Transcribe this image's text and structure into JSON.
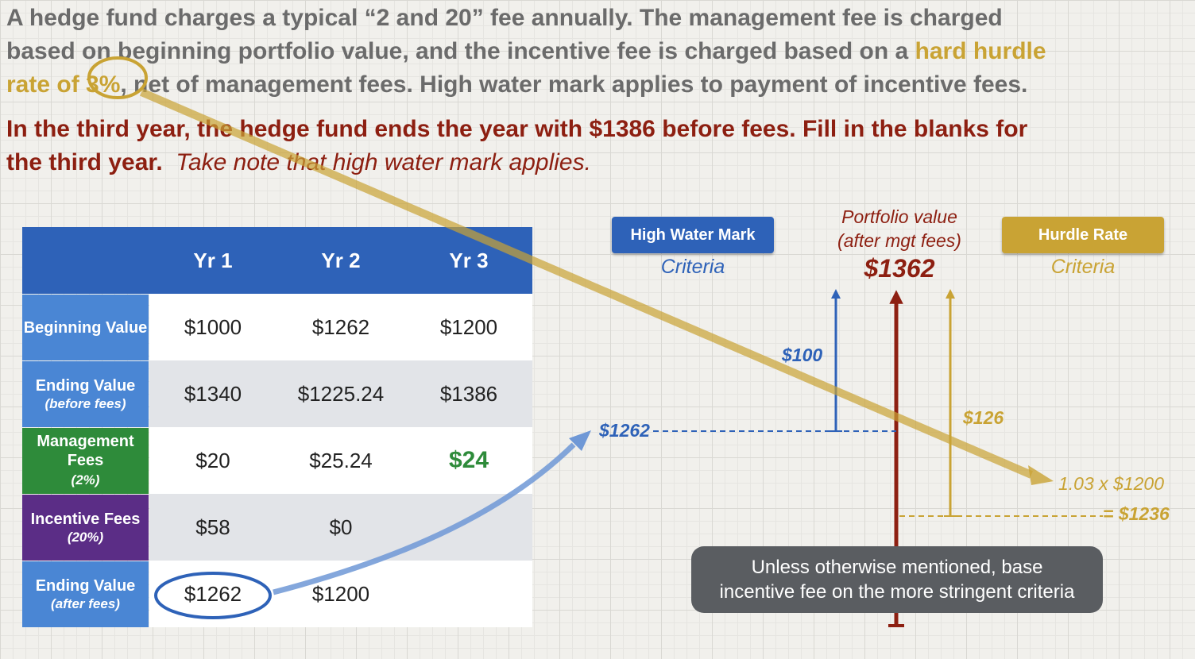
{
  "intro": {
    "part1": "A hedge fund charges a typical “2 and 20” fee annually.  The management fee is charged",
    "part2a": "based on beginning portfolio value, and the incentive fee is charged based on a ",
    "part2b": "hard hurdle",
    "part3a": "rate of 3%",
    "part3b": ", net of management fees.  High water mark applies to payment of incentive fees."
  },
  "question": {
    "line1": "In the third year, the hedge fund ends the year with $1386 before fees.  Fill in the blanks for",
    "line2": "the third year.",
    "note": "Take note that high water mark applies."
  },
  "table": {
    "headers": [
      "Yr 1",
      "Yr 2",
      "Yr 3"
    ],
    "rows": [
      {
        "label": "Beginning Value",
        "sub": "",
        "values": [
          "$1000",
          "$1262",
          "$1200"
        ]
      },
      {
        "label": "Ending Value",
        "sub": "(before fees)",
        "values": [
          "$1340",
          "$1225.24",
          "$1386"
        ]
      },
      {
        "label": "Management Fees",
        "sub": "(2%)",
        "values": [
          "$20",
          "$25.24",
          "$24"
        ]
      },
      {
        "label": "Incentive Fees",
        "sub": "(20%)",
        "values": [
          "$58",
          "$0",
          ""
        ]
      },
      {
        "label": "Ending Value",
        "sub": "(after fees)",
        "values": [
          "$1262",
          "$1200",
          ""
        ]
      }
    ]
  },
  "diagram": {
    "hwm_title": "High Water Mark",
    "hwm_sub": "Criteria",
    "portfolio_label_1": "Portfolio value",
    "portfolio_label_2": "(after mgt fees)",
    "portfolio_value": "$1362",
    "hurdle_title": "Hurdle Rate",
    "hurdle_sub": "Criteria",
    "hwm_gap": "$100",
    "hwm_level": "$1262",
    "hurdle_gap": "$126",
    "hurdle_calc": "1.03 x $1200",
    "hurdle_level": "= $1236",
    "note_line1": "Unless otherwise mentioned, base",
    "note_line2": "incentive fee on the more stringent criteria"
  },
  "colors": {
    "blue": "#2e62b8",
    "gold": "#c9a334",
    "maroon": "#8d1f11",
    "green": "#2e8b3a",
    "purple": "#5b2d86"
  }
}
